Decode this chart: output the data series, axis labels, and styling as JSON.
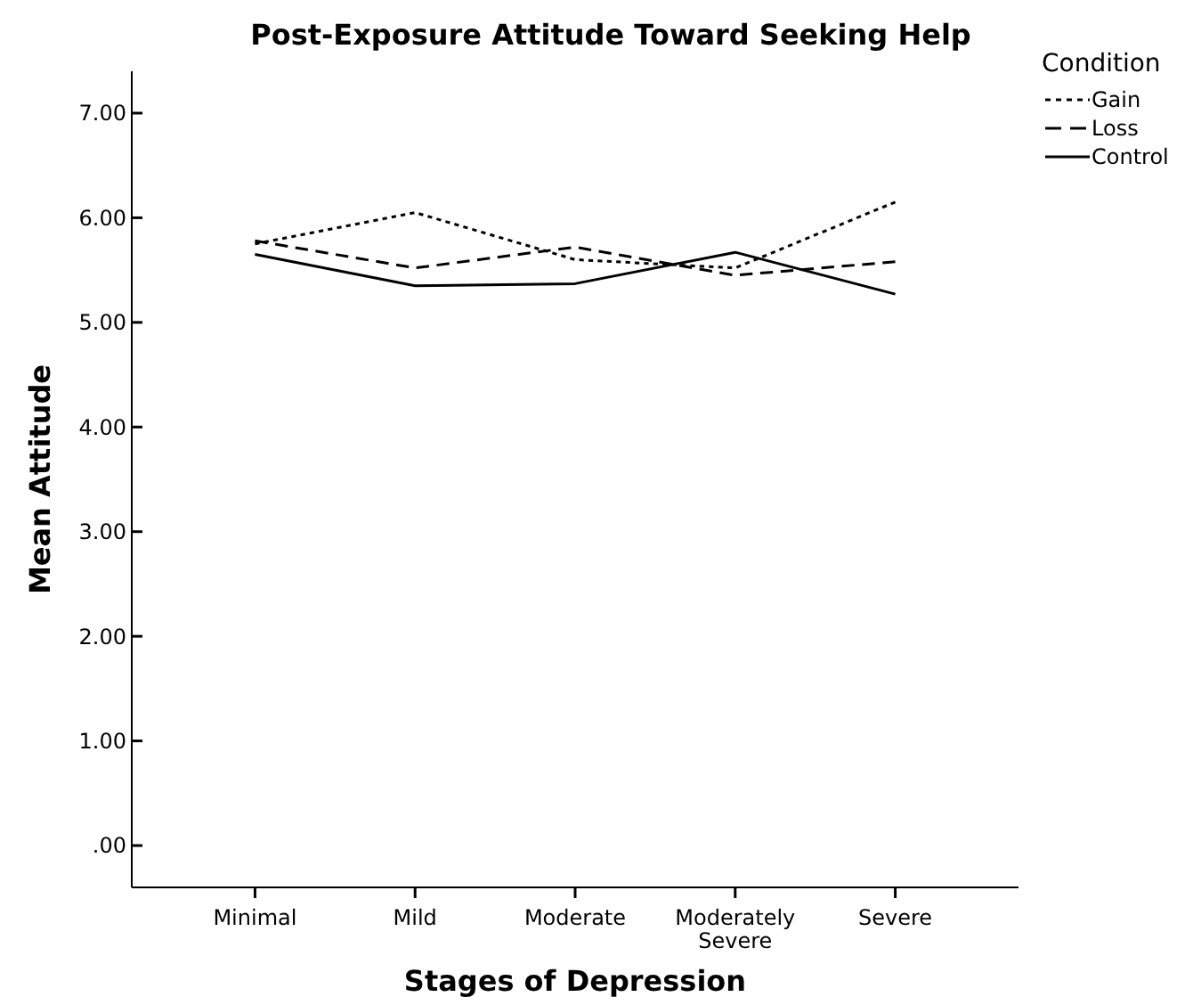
{
  "chart_data": {
    "type": "line",
    "title": "Post-Exposure Attitude Toward Seeking Help",
    "xlabel": "Stages of Depression",
    "ylabel": "Mean Attitude",
    "legend_title": "Condition",
    "legend": "top right",
    "categories": [
      "Minimal",
      "Mild",
      "Moderate",
      "Moderately Severe",
      "Severe"
    ],
    "series": [
      {
        "name": "Gain",
        "color": "#000000",
        "line_style": "dotted",
        "values": [
          5.75,
          6.05,
          5.6,
          5.52,
          6.15
        ]
      },
      {
        "name": "Loss",
        "color": "#000000",
        "line_style": "dashed",
        "values": [
          5.78,
          5.52,
          5.72,
          5.45,
          5.58
        ]
      },
      {
        "name": "Control",
        "color": "#000000",
        "line_style": "solid",
        "values": [
          5.65,
          5.35,
          5.37,
          5.67,
          5.27
        ]
      }
    ],
    "ylim": [
      -0.4,
      7.4
    ],
    "yticks": [
      {
        "value": 0,
        "label": ".00"
      },
      {
        "value": 1,
        "label": "1.00"
      },
      {
        "value": 2,
        "label": "2.00"
      },
      {
        "value": 3,
        "label": "3.00"
      },
      {
        "value": 4,
        "label": "4.00"
      },
      {
        "value": 5,
        "label": "5.00"
      },
      {
        "value": 6,
        "label": "6.00"
      },
      {
        "value": 7,
        "label": "7.00"
      }
    ],
    "grid": false
  }
}
